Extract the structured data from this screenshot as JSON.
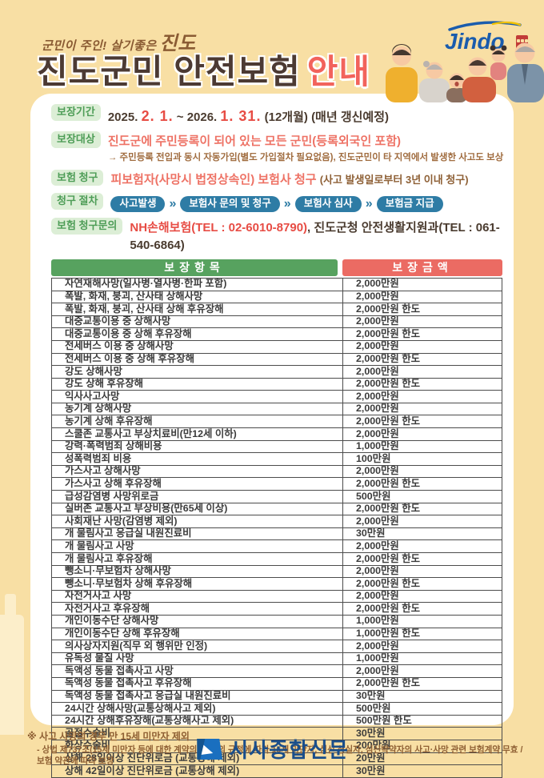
{
  "header": {
    "slogan_prefix": "군민이 주인! 살기좋은",
    "slogan_brand": "진도",
    "title": "진도군민 안전보험",
    "title_accent": "안내",
    "logo_text": "Jindo"
  },
  "colors": {
    "background": "#F8DFA4",
    "title_dark": "#4C3A33",
    "title_accent": "#F2635C",
    "badge_green_bg": "#DCEED6",
    "badge_green_text": "#4E9D57",
    "pill_blue": "#2E7CA5",
    "table_header_green": "#57A25F",
    "table_header_red": "#EB6B63",
    "accent_red": "#E74C44",
    "coral": "#EE7265",
    "brown": "#A06C3F",
    "logo_blue": "#1A5CAD"
  },
  "info": {
    "period": {
      "badge": "보장기간",
      "segments": [
        {
          "text": "2025. ",
          "style": "dark"
        },
        {
          "text": "2. 1.",
          "style": "red"
        },
        {
          "text": " ~ 2026. ",
          "style": "dark"
        },
        {
          "text": "1. 31.",
          "style": "red"
        },
        {
          "text": " (12개월) (매년 갱신예정)",
          "style": "dark"
        }
      ]
    },
    "target": {
      "badge": "보장대상",
      "line1": "진도군에 주민등록이 되어 있는 모든 군민(등록외국인 포함)",
      "line2": "→ 주민등록 전입과 동시 자동가입(별도 가입절차 필요없음), 진도군민이 타 지역에서 발생한 사고도 보상"
    },
    "claim": {
      "badge": "보험 청구",
      "main": "피보험자(사망시 법정상속인) 보험사 청구",
      "note": "(사고 발생일로부터 3년 이내 청구)"
    },
    "steps": {
      "badge": "청구 절차",
      "separator": "»",
      "items": [
        "사고발생",
        "보험사 문의 및 청구",
        "보험사 심사",
        "보험금 지급"
      ]
    },
    "contact": {
      "badge": "보험 청구문의",
      "primary": "NH손해보험(TEL : 02-6010-8790)",
      "comma": ", ",
      "secondary": "진도군청 안전생활지원과(TEL : 061-540-6864)"
    }
  },
  "table": {
    "col_item": "보장항목",
    "col_amount": "보장금액",
    "rows": [
      [
        "자연재해사망(일사병·열사병·한파 포함)",
        "2,000만원"
      ],
      [
        "폭발, 화재, 붕괴, 산사태 상해사망",
        "2,000만원"
      ],
      [
        "폭발, 화재, 붕괴, 산사태 상해 후유장해",
        "2,000만원 한도"
      ],
      [
        "대중교통이용 중 상해사망",
        "2,000만원"
      ],
      [
        "대중교통이용 중 상해 후유장해",
        "2,000만원 한도"
      ],
      [
        "전세버스 이용 중 상해사망",
        "2,000만원"
      ],
      [
        "전세버스 이용 중 상해 후유장해",
        "2,000만원 한도"
      ],
      [
        "강도 상해사망",
        "2,000만원"
      ],
      [
        "강도 상해 후유장해",
        "2,000만원 한도"
      ],
      [
        "익사사고사망",
        "2,000만원"
      ],
      [
        "농기계 상해사망",
        "2,000만원"
      ],
      [
        "농기계 상해 후유장해",
        "2,000만원 한도"
      ],
      [
        "스쿨존 교통사고 부상치료비(만12세 이하)",
        "2,000만원"
      ],
      [
        "강력·폭력범죄 상해비용",
        "1,000만원"
      ],
      [
        "성폭력범죄 비용",
        "100만원"
      ],
      [
        "가스사고 상해사망",
        "2,000만원"
      ],
      [
        "가스사고 상해 후유장해",
        "2,000만원 한도"
      ],
      [
        "급성감염병 사망위로금",
        "500만원"
      ],
      [
        "실버존 교통사고 부상비용(만65세 이상)",
        "2,000만원 한도"
      ],
      [
        "사회재난 사망(감염병 제외)",
        "2,000만원"
      ],
      [
        "개 물림사고 응급실 내원진료비",
        "30만원"
      ],
      [
        "개 물림사고 사망",
        "2,000만원"
      ],
      [
        "개 물림사고 후유장해",
        "2,000만원 한도"
      ],
      [
        "뺑소니·무보험차 상해사망",
        "2,000만원"
      ],
      [
        "뺑소니·무보험차 상해 후유장해",
        "2,000만원 한도"
      ],
      [
        "자전거사고 사망",
        "2,000만원"
      ],
      [
        "자전거사고 후유장해",
        "2,000만원 한도"
      ],
      [
        "개인이동수단 상해사망",
        "1,000만원"
      ],
      [
        "개인이동수단 상해 후유장해",
        "1,000만원 한도"
      ],
      [
        "의사상자지원(직무 외 행위만 인정)",
        "2,000만원"
      ],
      [
        "유독성 물질 사망",
        "1,000만원"
      ],
      [
        "독액성 동물 접촉사고 사망",
        "2,000만원"
      ],
      [
        "독액성 동물 접촉사고 후유장해",
        "2,000만원 한도"
      ],
      [
        "독액성 동물 접촉사고 응급실 내원진료비",
        "30만원"
      ],
      [
        "24시간 상해사망(교통상해사고 제외)",
        "500만원"
      ],
      [
        "24시간 상해후유장해(교통상해사고 제외)",
        "500만원 한도"
      ],
      [
        "골절수술비",
        "30만원"
      ],
      [
        "화상수술비",
        "200만원"
      ],
      [
        "상해 28일이상 진단위로금 (교통상해 제외)",
        "20만원"
      ],
      [
        "상해 42일이상 진단위로금 (교통상해 제외)",
        "30만원"
      ]
    ]
  },
  "notes": {
    "line1": "※ 사고 사망의 경우 만 15세 미만자 제외",
    "line2": "- 상법 제737조(15세 미만자 등에 대한 계약의 금지)의 규정에 따라 15세 미만자, 심신 상실자, 심신박약자의 사고·사망 관련 보험계약 무효 /",
    "line3": "보험 약관에 따라 보장"
  },
  "watermark": {
    "text": "시사종합신문"
  }
}
